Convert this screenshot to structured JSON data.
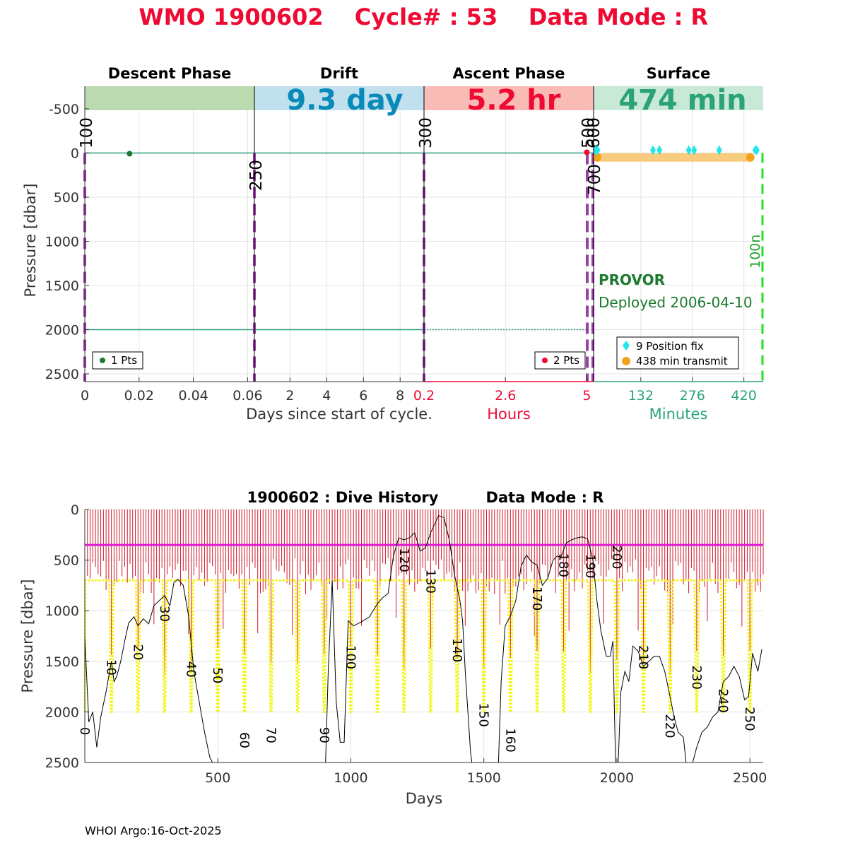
{
  "title": {
    "wmo_label": "WMO 1900602",
    "cycle_label": "Cycle# : 53",
    "mode_label": "Data Mode : R",
    "color": "#ee0a33"
  },
  "chart_data": [
    {
      "type": "scatter",
      "name": "cycle-profile",
      "ylabel": "Pressure [dbar]",
      "ylim": [
        2600,
        -700
      ],
      "yticks": [
        "-500",
        "0",
        "500",
        "1000",
        "1500",
        "2000",
        "2500"
      ],
      "ytick_values": [
        -500,
        0,
        500,
        1000,
        1500,
        2000,
        2500
      ],
      "phases": [
        {
          "name": "Descent Phase",
          "value": "",
          "band_color": "#bcdaaf",
          "text_color": "#000000"
        },
        {
          "name": "Drift",
          "value": "9.3 day",
          "band_color": "#bfe0ec",
          "text_color": "#0a8ab8"
        },
        {
          "name": "Ascent Phase",
          "value": "5.2 hr",
          "band_color": "#f9bbb6",
          "text_color": "#ee0a33"
        },
        {
          "name": "Surface",
          "value": "474 min",
          "band_color": "#c8e9d6",
          "text_color": "#2aa37a"
        }
      ],
      "x_axes": [
        {
          "segment": "descent",
          "range": [
            0,
            0.0625
          ],
          "ticks": [
            "0",
            "0.02",
            "0.04",
            "0.06"
          ],
          "tick_values": [
            0,
            0.02,
            0.04,
            0.06
          ],
          "label": "Days since start of cycle.",
          "color": "#333333"
        },
        {
          "segment": "drift",
          "range": [
            0.0625,
            9.3
          ],
          "ticks": [
            "2",
            "4",
            "6",
            "8"
          ],
          "tick_values": [
            2,
            4,
            6,
            8
          ],
          "label": "",
          "color": "#333333"
        },
        {
          "segment": "ascent",
          "range": [
            0.2,
            5.2
          ],
          "ticks": [
            "0.2",
            "2.6",
            "5"
          ],
          "tick_values": [
            0.2,
            2.6,
            5
          ],
          "label": "Hours",
          "color": "#ee0a33"
        },
        {
          "segment": "surface",
          "range": [
            0,
            474
          ],
          "ticks": [
            "132",
            "276",
            "420"
          ],
          "tick_values": [
            132,
            276,
            420
          ],
          "label": "Minutes",
          "color": "#2aa37a"
        }
      ],
      "vertical_markers": [
        {
          "label": "100",
          "segment": "descent",
          "x": 0
        },
        {
          "label": "250",
          "segment": "drift",
          "x": 0.0625
        },
        {
          "label": "300",
          "segment": "ascent",
          "x": 0.2
        },
        {
          "label": "500",
          "segment": "ascent",
          "x": 5.2
        },
        {
          "label": "600",
          "segment": "surface",
          "x": 0
        },
        {
          "label": "700",
          "segment": "surface",
          "x": 0
        },
        {
          "label": "100n",
          "segment": "surface",
          "x": 474
        }
      ],
      "reference_lines": [
        0,
        2000
      ],
      "descent_points": [
        {
          "x": 0.0165,
          "y": 0
        }
      ],
      "ascent_points": [
        {
          "x": 5.0,
          "y": 0
        }
      ],
      "position_fix_minutes": [
        0,
        5,
        160,
        178,
        260,
        275,
        345,
        446,
        450
      ],
      "transmit_window_minutes": [
        0,
        438
      ],
      "transmit_pressure": 50,
      "legends": {
        "descent": "1 Pts",
        "ascent": "2 Pts",
        "position_fix": "9 Position fix",
        "transmit": "438 min transmit"
      },
      "float_type": "PROVOR",
      "deployed": "Deployed 2006-04-10"
    },
    {
      "type": "line",
      "name": "dive-history",
      "title_id": "1900602 : Dive History",
      "title_mode": "Data Mode : R",
      "xlabel": "Days",
      "ylabel": "Pressure [dbar]",
      "xlim": [
        0,
        2550
      ],
      "ylim": [
        2500,
        0
      ],
      "xticks": [
        "500",
        "1000",
        "1500",
        "2000",
        "2500"
      ],
      "xtick_values": [
        500,
        1000,
        1500,
        2000,
        2500
      ],
      "yticks": [
        "0",
        "500",
        "1000",
        "1500",
        "2000",
        "2500"
      ],
      "ytick_values": [
        0,
        500,
        1000,
        1500,
        2000,
        2500
      ],
      "drift_pressure_line": 350,
      "cycle_interval_days": 10,
      "yellow_park_pressure": 700,
      "yellow_profile_pressure": 2000,
      "cycle_labels": [
        {
          "text": "0",
          "x": 0,
          "y": 2150
        },
        {
          "text": "10",
          "x": 100,
          "y": 1480
        },
        {
          "text": "20",
          "x": 200,
          "y": 1330
        },
        {
          "text": "30",
          "x": 300,
          "y": 950
        },
        {
          "text": "40",
          "x": 400,
          "y": 1500
        },
        {
          "text": "50",
          "x": 500,
          "y": 1560
        },
        {
          "text": "60",
          "x": 600,
          "y": 2200
        },
        {
          "text": "70",
          "x": 700,
          "y": 2150
        },
        {
          "text": "90",
          "x": 900,
          "y": 2150
        },
        {
          "text": "100",
          "x": 1000,
          "y": 1340
        },
        {
          "text": "120",
          "x": 1200,
          "y": 380
        },
        {
          "text": "130",
          "x": 1300,
          "y": 590
        },
        {
          "text": "140",
          "x": 1400,
          "y": 1270
        },
        {
          "text": "150",
          "x": 1500,
          "y": 1910
        },
        {
          "text": "160",
          "x": 1600,
          "y": 2160
        },
        {
          "text": "170",
          "x": 1700,
          "y": 760
        },
        {
          "text": "180",
          "x": 1800,
          "y": 430
        },
        {
          "text": "190",
          "x": 1900,
          "y": 440
        },
        {
          "text": "200",
          "x": 2000,
          "y": 350
        },
        {
          "text": "210",
          "x": 2100,
          "y": 1340
        },
        {
          "text": "220",
          "x": 2200,
          "y": 2020
        },
        {
          "text": "230",
          "x": 2300,
          "y": 1540
        },
        {
          "text": "240",
          "x": 2400,
          "y": 1770
        },
        {
          "text": "250",
          "x": 2500,
          "y": 1950
        }
      ],
      "profile_trace": [
        [
          0,
          1250
        ],
        [
          15,
          2100
        ],
        [
          30,
          2000
        ],
        [
          45,
          2350
        ],
        [
          60,
          2050
        ],
        [
          80,
          1800
        ],
        [
          100,
          1500
        ],
        [
          110,
          1700
        ],
        [
          120,
          1650
        ],
        [
          135,
          1500
        ],
        [
          150,
          1300
        ],
        [
          165,
          1120
        ],
        [
          185,
          1060
        ],
        [
          200,
          1150
        ],
        [
          220,
          1080
        ],
        [
          240,
          1130
        ],
        [
          260,
          950
        ],
        [
          280,
          900
        ],
        [
          300,
          850
        ],
        [
          320,
          950
        ],
        [
          335,
          720
        ],
        [
          350,
          690
        ],
        [
          370,
          750
        ],
        [
          390,
          1050
        ],
        [
          410,
          1600
        ],
        [
          430,
          1900
        ],
        [
          450,
          2200
        ],
        [
          470,
          2450
        ],
        [
          480,
          2500
        ],
        [
          905,
          2500
        ],
        [
          915,
          1600
        ],
        [
          930,
          700
        ],
        [
          945,
          1900
        ],
        [
          960,
          2300
        ],
        [
          975,
          2300
        ],
        [
          990,
          1100
        ],
        [
          1010,
          1150
        ],
        [
          1040,
          1110
        ],
        [
          1070,
          1060
        ],
        [
          1100,
          930
        ],
        [
          1120,
          870
        ],
        [
          1140,
          830
        ],
        [
          1160,
          460
        ],
        [
          1180,
          280
        ],
        [
          1200,
          300
        ],
        [
          1220,
          280
        ],
        [
          1240,
          230
        ],
        [
          1260,
          410
        ],
        [
          1280,
          380
        ],
        [
          1300,
          230
        ],
        [
          1330,
          60
        ],
        [
          1350,
          80
        ],
        [
          1370,
          300
        ],
        [
          1390,
          650
        ],
        [
          1410,
          900
        ],
        [
          1420,
          1100
        ],
        [
          1430,
          1600
        ],
        [
          1440,
          2000
        ],
        [
          1450,
          2400
        ],
        [
          1455,
          2500
        ],
        [
          1555,
          2500
        ],
        [
          1565,
          1700
        ],
        [
          1580,
          1150
        ],
        [
          1600,
          1050
        ],
        [
          1620,
          900
        ],
        [
          1640,
          560
        ],
        [
          1660,
          450
        ],
        [
          1680,
          520
        ],
        [
          1700,
          550
        ],
        [
          1720,
          750
        ],
        [
          1740,
          680
        ],
        [
          1760,
          500
        ],
        [
          1775,
          460
        ],
        [
          1790,
          470
        ],
        [
          1810,
          330
        ],
        [
          1830,
          300
        ],
        [
          1850,
          280
        ],
        [
          1870,
          270
        ],
        [
          1890,
          290
        ],
        [
          1910,
          500
        ],
        [
          1925,
          900
        ],
        [
          1940,
          1200
        ],
        [
          1960,
          1450
        ],
        [
          1975,
          1450
        ],
        [
          1985,
          1300
        ],
        [
          1995,
          2500
        ],
        [
          2005,
          2500
        ],
        [
          2015,
          1800
        ],
        [
          2030,
          1600
        ],
        [
          2045,
          1700
        ],
        [
          2060,
          1350
        ],
        [
          2080,
          1400
        ],
        [
          2100,
          1550
        ],
        [
          2120,
          1500
        ],
        [
          2140,
          1450
        ],
        [
          2160,
          1450
        ],
        [
          2180,
          1600
        ],
        [
          2200,
          1850
        ],
        [
          2215,
          2050
        ],
        [
          2230,
          2200
        ],
        [
          2250,
          2250
        ],
        [
          2260,
          2500
        ],
        [
          2285,
          2500
        ],
        [
          2300,
          2350
        ],
        [
          2320,
          2200
        ],
        [
          2340,
          2150
        ],
        [
          2360,
          2050
        ],
        [
          2380,
          2000
        ],
        [
          2400,
          1700
        ],
        [
          2420,
          1650
        ],
        [
          2440,
          1550
        ],
        [
          2460,
          1650
        ],
        [
          2480,
          1880
        ],
        [
          2495,
          1850
        ],
        [
          2510,
          1420
        ],
        [
          2530,
          1600
        ],
        [
          2545,
          1380
        ]
      ]
    }
  ],
  "footer": "WHOI Argo:16-Oct-2025"
}
